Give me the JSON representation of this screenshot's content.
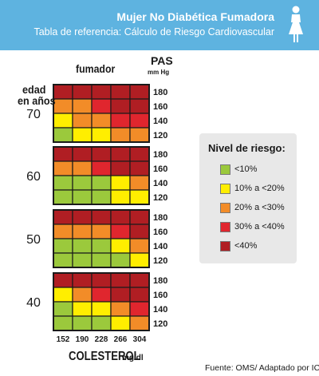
{
  "header": {
    "title": "Mujer No Diabética Fumadora",
    "subtitle": "Tabla de referencia: Cálculo de Riesgo Cardiovascular",
    "icon": "woman-icon"
  },
  "chart_data": {
    "type": "heatmap",
    "smoker_label": "fumador",
    "pas_label": "PAS",
    "pas_unit": "mm Hg",
    "age_label_line1": "edad",
    "age_label_line2": "en años",
    "xlabel": "COLESTEROL",
    "xlabel_unit": "mg/dl",
    "cholesterol_ticks": [
      "152",
      "190",
      "228",
      "266",
      "304"
    ],
    "pas_ticks": [
      "180",
      "160",
      "140",
      "120"
    ],
    "panels": [
      {
        "age": "70",
        "grid": [
          [
            4,
            4,
            4,
            4,
            4
          ],
          [
            2,
            2,
            3,
            4,
            4
          ],
          [
            1,
            2,
            2,
            3,
            3
          ],
          [
            0,
            1,
            1,
            2,
            2
          ]
        ]
      },
      {
        "age": "60",
        "grid": [
          [
            4,
            4,
            4,
            4,
            4
          ],
          [
            2,
            2,
            3,
            4,
            4
          ],
          [
            0,
            0,
            0,
            1,
            2
          ],
          [
            0,
            0,
            0,
            1,
            1
          ]
        ]
      },
      {
        "age": "50",
        "grid": [
          [
            4,
            4,
            4,
            4,
            4
          ],
          [
            2,
            2,
            2,
            3,
            4
          ],
          [
            0,
            0,
            0,
            1,
            2
          ],
          [
            0,
            0,
            0,
            0,
            1
          ]
        ]
      },
      {
        "age": "40",
        "grid": [
          [
            4,
            4,
            4,
            4,
            4
          ],
          [
            1,
            2,
            3,
            4,
            4
          ],
          [
            0,
            1,
            1,
            2,
            3
          ],
          [
            0,
            0,
            0,
            1,
            2
          ]
        ]
      }
    ],
    "risk_colors": [
      "#9bc93c",
      "#ffee00",
      "#f28c28",
      "#e0262e",
      "#b01e23"
    ]
  },
  "legend": {
    "title": "Nivel de riesgo:",
    "items": [
      {
        "label": "<10%",
        "color": "#9bc93c"
      },
      {
        "label": "10% a <20%",
        "color": "#ffee00"
      },
      {
        "label": "20% a <30%",
        "color": "#f28c28"
      },
      {
        "label": "30% a <40%",
        "color": "#e0262e"
      },
      {
        "label": "<40%",
        "color": "#b01e23"
      }
    ]
  },
  "source": "Fuente:  OMS/ Adaptado por ICS"
}
